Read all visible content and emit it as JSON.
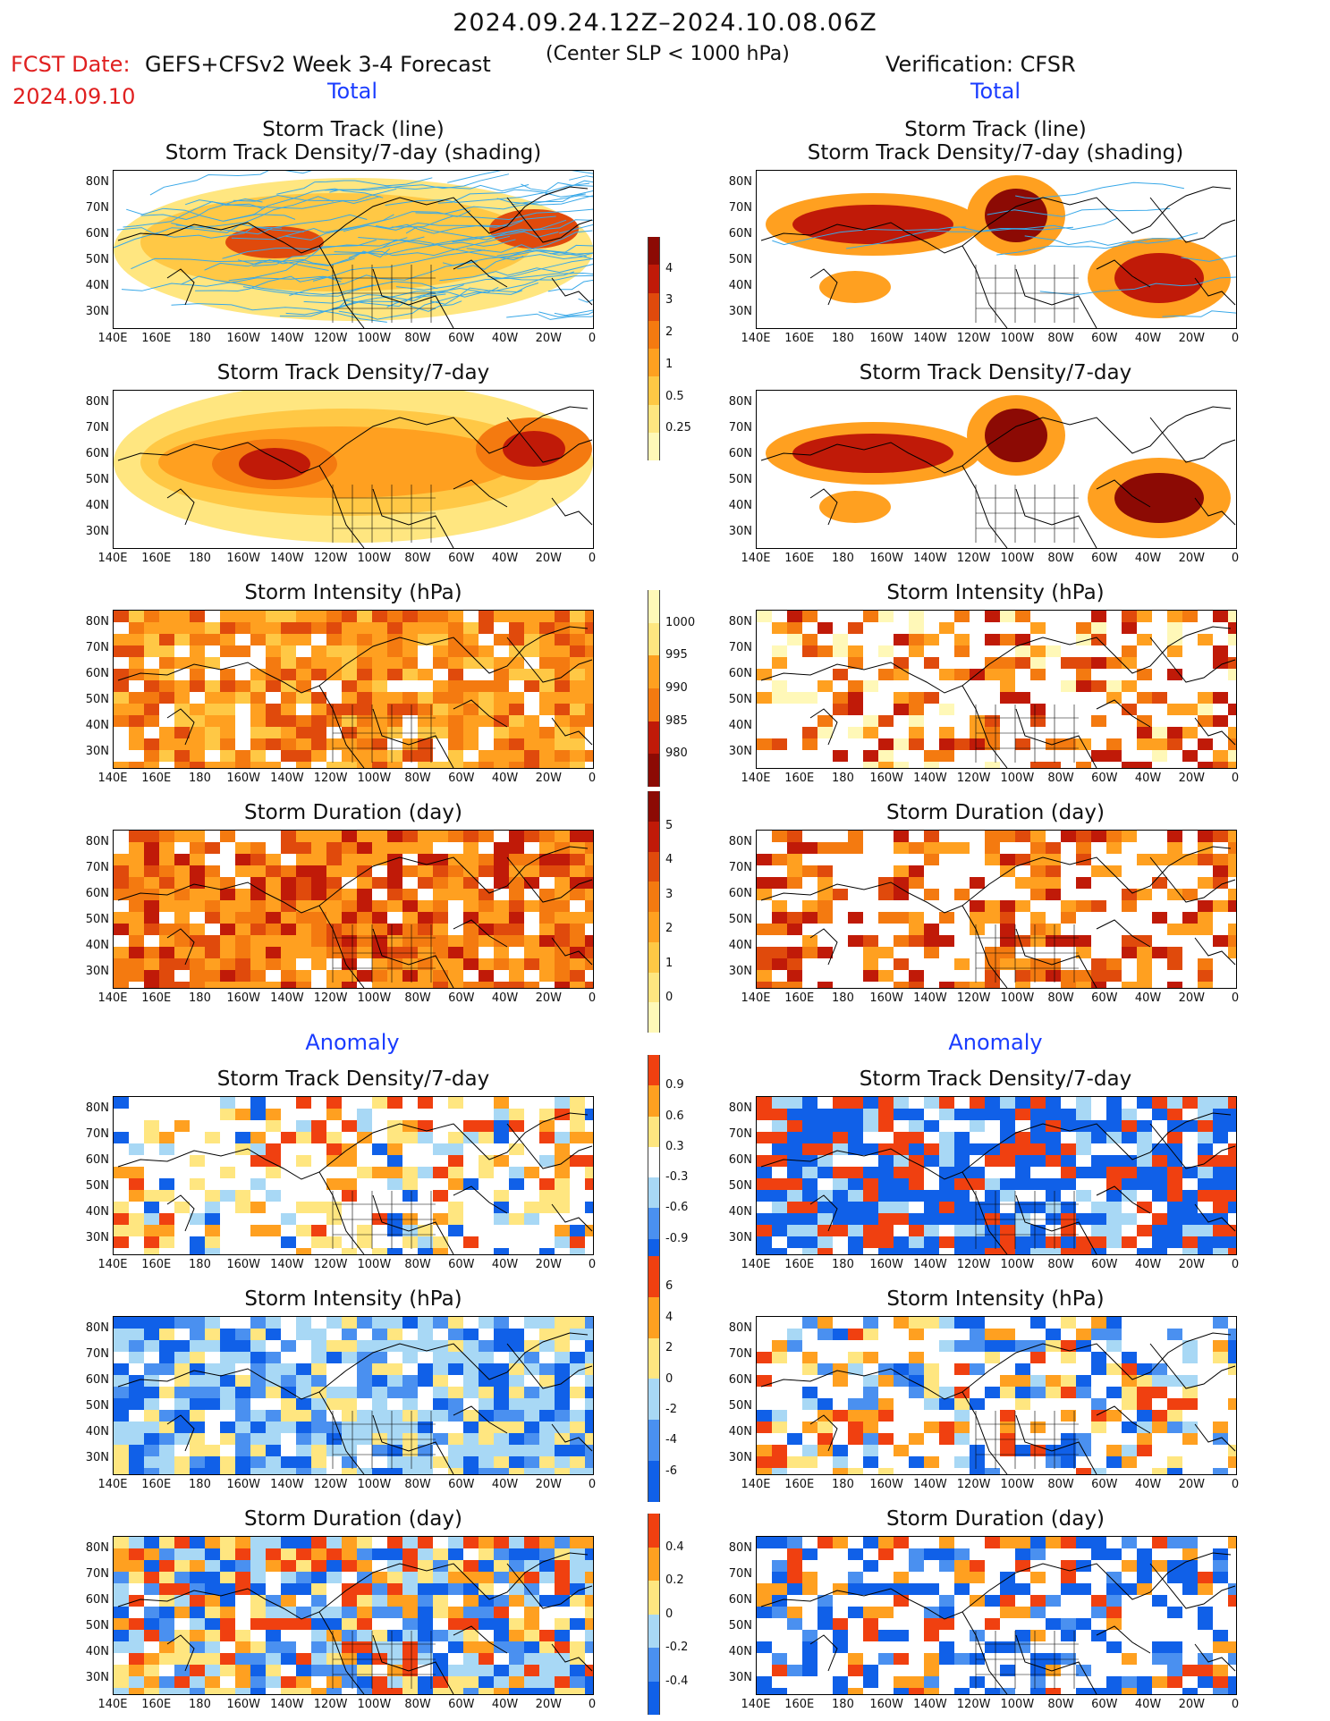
{
  "header": {
    "date_range": "2024.09.24.12Z–2024.10.08.06Z",
    "fcst_label": "FCST Date:",
    "fcst_date": "2024.09.10",
    "model": "GEFS+CFSv2 Week 3-4 Forecast",
    "center": "(Center SLP < 1000 hPa)",
    "verification": "Verification: CFSR"
  },
  "sections": {
    "total_left": "Total",
    "total_right": "Total",
    "anomaly_left": "Anomaly",
    "anomaly_right": "Anomaly"
  },
  "titles": {
    "track_line": "Storm Track (line)",
    "track_density_shading": "Storm Track Density/7-day (shading)",
    "track_density": "Storm Track Density/7-day",
    "intensity": "Storm Intensity (hPa)",
    "duration": "Storm Duration (day)"
  },
  "axes": {
    "lat_labels": [
      "80N",
      "70N",
      "60N",
      "50N",
      "40N",
      "30N"
    ],
    "lon_labels": [
      "140E",
      "160E",
      "180",
      "160W",
      "140W",
      "120W",
      "100W",
      "80W",
      "60W",
      "40W",
      "20W",
      "0"
    ]
  },
  "colorbars": {
    "total_density": [
      "4",
      "3",
      "2",
      "1",
      "0.5",
      "0.25"
    ],
    "total_intensity": [
      "1000",
      "995",
      "990",
      "985",
      "980"
    ],
    "total_duration": [
      "5",
      "4",
      "3",
      "2",
      "1",
      "0"
    ],
    "anom_density": [
      "0.9",
      "0.6",
      "0.3",
      "-0.3",
      "-0.6",
      "-0.9"
    ],
    "anom_intensity": [
      "6",
      "4",
      "2",
      "0",
      "-2",
      "-4",
      "-6"
    ],
    "anom_duration": [
      "0.4",
      "0.2",
      "0",
      "-0.2",
      "-0.4"
    ]
  },
  "colors": {
    "total_scale": [
      "#fff8b8",
      "#ffe680",
      "#ffc845",
      "#ffa020",
      "#f47a10",
      "#e04a0c",
      "#c01a08",
      "#8c0a04"
    ],
    "anom_scale": [
      "#1060e8",
      "#4a90f0",
      "#a8d8f5",
      "#ffffff",
      "#ffe680",
      "#ffa020",
      "#f04010"
    ],
    "track_line": "#38a8e8",
    "title_blue": "#1a3cff",
    "fcst_red": "#e02020"
  }
}
